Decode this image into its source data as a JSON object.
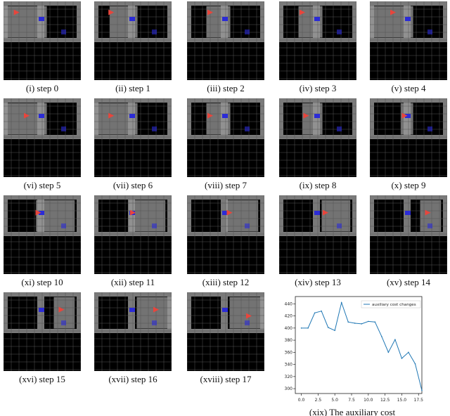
{
  "figure": {
    "panels": [
      {
        "caption": "(i) step 0"
      },
      {
        "caption": "(ii) step 1"
      },
      {
        "caption": "(iii) step 2"
      },
      {
        "caption": "(iv) step 3"
      },
      {
        "caption": "(v) step 4"
      },
      {
        "caption": "(vi) step 5"
      },
      {
        "caption": "(vii) step 6"
      },
      {
        "caption": "(viii) step 7"
      },
      {
        "caption": "(ix) step 8"
      },
      {
        "caption": "(x) step 9"
      },
      {
        "caption": "(xi) step 10"
      },
      {
        "caption": "(xii) step 11"
      },
      {
        "caption": "(xiii) step 12"
      },
      {
        "caption": "(xiv) step 13"
      },
      {
        "caption": "(xv) step 14"
      },
      {
        "caption": "(xvi) step 15"
      },
      {
        "caption": "(xvii) step 16"
      },
      {
        "caption": "(xviii) step 17"
      }
    ],
    "chart_caption": "(xix) The auxiliary cost",
    "colors": {
      "agent": "#e8453c",
      "goal": "#2b2bd6",
      "wall": "#7a7a7a",
      "lit": "#9a9a9a",
      "floor": "#000000"
    }
  },
  "chart_data": {
    "type": "line",
    "title": "",
    "xlabel": "",
    "ylabel": "",
    "legend": "top-right",
    "grid": false,
    "xlim": [
      -0.9,
      18.0
    ],
    "ylim": [
      292,
      452
    ],
    "xticks": [
      "0.0",
      "2.5",
      "5.0",
      "7.5",
      "10.0",
      "12.5",
      "15.0",
      "17.5"
    ],
    "yticks": [
      "300",
      "320",
      "340",
      "360",
      "380",
      "400",
      "420",
      "440"
    ],
    "series": [
      {
        "name": "auxiliary cost changes",
        "color": "#1f77b4",
        "x": [
          0,
          1,
          2,
          3,
          4,
          5,
          6,
          7,
          8,
          9,
          10,
          11,
          12,
          13,
          14,
          15,
          16,
          17,
          18
        ],
        "values": [
          400,
          400,
          425,
          428,
          401,
          396,
          442,
          410,
          408,
          407,
          411,
          410,
          386,
          360,
          381,
          350,
          360,
          341,
          297
        ]
      }
    ]
  }
}
